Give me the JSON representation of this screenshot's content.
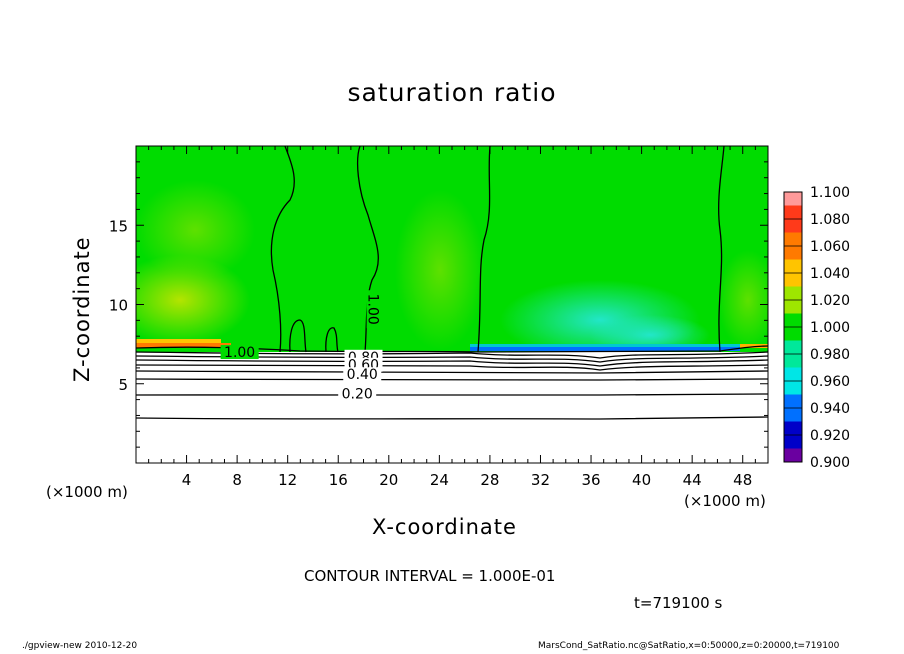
{
  "chart_data": {
    "type": "heatmap",
    "title": "saturation ratio",
    "xlabel": "X-coordinate",
    "ylabel": "Z-coordinate",
    "x_unit_left": "(×1000 m)",
    "x_unit_right": "(×1000 m)",
    "xlim": [
      0,
      50
    ],
    "ylim": [
      0,
      20
    ],
    "x_ticks": [
      4,
      8,
      12,
      16,
      20,
      24,
      28,
      32,
      36,
      40,
      44,
      48
    ],
    "y_ticks": [
      5,
      10,
      15
    ],
    "colorbar": {
      "levels": [
        "1.100",
        "1.080",
        "1.060",
        "1.040",
        "1.020",
        "1.000",
        "0.980",
        "0.960",
        "0.940",
        "0.920",
        "0.900"
      ],
      "colors": [
        "#ff9a9a",
        "#ff3a1a",
        "#ff7a00",
        "#ffc400",
        "#9ee600",
        "#00dc00",
        "#00e89a",
        "#00e6e6",
        "#0070ff",
        "#0000c8",
        "#6a00a0"
      ]
    },
    "contour_labels": [
      {
        "text": "1.00",
        "x": 8.2,
        "z": 7.0
      },
      {
        "text": "1.00",
        "x": 18.8,
        "z": 9.7
      },
      {
        "text": "0.80",
        "x": 18.0,
        "z": 6.7
      },
      {
        "text": "0.60",
        "x": 18.0,
        "z": 6.2
      },
      {
        "text": "0.40",
        "x": 17.9,
        "z": 5.6
      },
      {
        "text": "0.20",
        "x": 17.5,
        "z": 4.4
      }
    ],
    "grid": false
  },
  "contour_interval": "CONTOUR INTERVAL = 1.000E-01",
  "time_label": "t=719100 s",
  "footer_left": "./gpview-new   2010-12-20",
  "footer_right": "MarsCond_SatRatio.nc@SatRatio,x=0:50000,z=0:20000,t=719100"
}
